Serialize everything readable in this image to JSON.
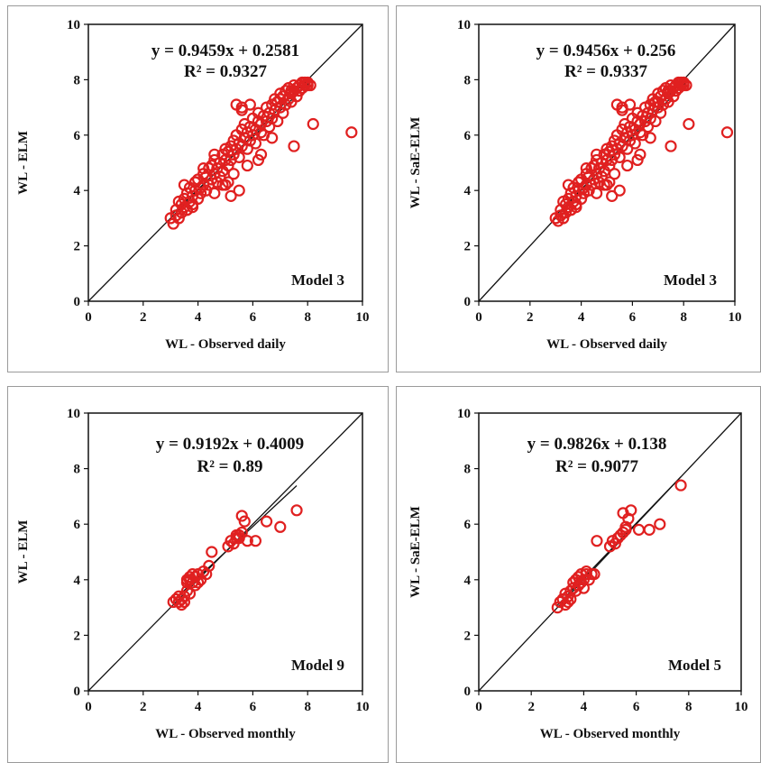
{
  "chart_data": [
    {
      "type": "scatter",
      "title": "",
      "xlabel": "WL - Observed daily",
      "ylabel": "WL - ELM",
      "xlim": [
        0,
        10
      ],
      "ylim": [
        0,
        10
      ],
      "xticks": [
        0,
        2,
        4,
        6,
        8,
        10
      ],
      "yticks": [
        0,
        2,
        4,
        6,
        8,
        10
      ],
      "equation": "y = 0.9459x + 0.2581",
      "r2": "R² = 0.9327",
      "model_label": "Model 3",
      "fit": {
        "slope": 0.9459,
        "intercept": 0.2581,
        "x_range": [
          3.0,
          8.1
        ]
      },
      "reference_line": "1:1",
      "marker_color": "#e02020",
      "x": [
        3.0,
        3.1,
        3.2,
        3.2,
        3.3,
        3.4,
        3.4,
        3.5,
        3.5,
        3.6,
        3.6,
        3.7,
        3.7,
        3.8,
        3.8,
        3.9,
        3.9,
        4.0,
        4.0,
        4.1,
        4.1,
        4.2,
        4.2,
        4.3,
        4.3,
        4.4,
        4.4,
        4.5,
        4.5,
        4.6,
        4.6,
        4.7,
        4.7,
        4.8,
        4.8,
        4.9,
        4.9,
        5.0,
        5.0,
        5.1,
        5.1,
        5.2,
        5.2,
        5.3,
        5.3,
        5.4,
        5.4,
        5.5,
        5.5,
        5.6,
        5.6,
        5.7,
        5.7,
        5.8,
        5.8,
        5.9,
        5.9,
        6.0,
        6.0,
        6.1,
        6.1,
        6.2,
        6.2,
        6.3,
        6.3,
        6.4,
        6.4,
        6.5,
        6.5,
        6.6,
        6.6,
        6.7,
        6.7,
        6.8,
        6.8,
        6.9,
        6.9,
        7.0,
        7.0,
        7.1,
        7.1,
        7.2,
        7.2,
        7.3,
        7.3,
        7.4,
        7.4,
        7.5,
        7.5,
        7.6,
        7.6,
        7.7,
        7.7,
        7.8,
        7.8,
        7.9,
        7.9,
        8.0,
        8.0,
        8.1,
        3.3,
        3.6,
        3.9,
        4.2,
        4.6,
        5.0,
        5.3,
        5.6,
        5.9,
        6.3,
        6.7,
        7.0,
        7.4,
        7.8,
        5.4,
        5.6,
        5.2,
        5.5,
        5.1,
        7.5,
        8.2,
        9.6,
        5.8,
        6.2,
        4.6,
        4.9,
        3.5,
        3.8
      ],
      "y": [
        3.0,
        2.8,
        3.1,
        3.3,
        3.0,
        3.5,
        3.2,
        3.7,
        3.4,
        3.3,
        3.9,
        3.6,
        4.1,
        3.8,
        3.5,
        4.0,
        4.3,
        3.7,
        4.4,
        4.1,
        3.9,
        4.6,
        4.2,
        4.0,
        4.5,
        4.8,
        4.2,
        4.4,
        4.9,
        4.6,
        5.1,
        4.3,
        4.8,
        5.0,
        4.5,
        5.3,
        4.7,
        5.1,
        5.5,
        4.9,
        5.4,
        5.6,
        5.1,
        5.8,
        5.3,
        5.5,
        6.0,
        5.7,
        5.2,
        6.2,
        5.6,
        5.9,
        6.4,
        5.5,
        6.1,
        6.3,
        5.8,
        6.0,
        6.6,
        6.2,
        5.7,
        6.5,
        6.8,
        6.1,
        6.4,
        6.7,
        6.0,
        7.0,
        6.5,
        6.8,
        6.3,
        7.1,
        6.6,
        6.9,
        7.3,
        6.5,
        7.2,
        7.0,
        7.5,
        6.8,
        7.4,
        7.6,
        7.1,
        7.3,
        7.7,
        7.5,
        7.2,
        7.6,
        7.8,
        7.4,
        7.7,
        7.8,
        7.6,
        7.9,
        7.7,
        7.8,
        7.9,
        7.9,
        7.8,
        7.8,
        3.6,
        3.3,
        4.3,
        4.8,
        5.3,
        4.2,
        4.6,
        6.9,
        7.1,
        5.3,
        5.9,
        7.3,
        7.6,
        7.7,
        7.1,
        7.0,
        3.8,
        4.0,
        4.3,
        5.6,
        6.4,
        6.1,
        4.9,
        5.1,
        3.9,
        4.2,
        4.2,
        3.4
      ]
    },
    {
      "type": "scatter",
      "title": "",
      "xlabel": "WL - Observed daily",
      "ylabel": "WL - SaE-ELM",
      "xlim": [
        0,
        10
      ],
      "ylim": [
        0,
        10
      ],
      "xticks": [
        0,
        2,
        4,
        6,
        8,
        10
      ],
      "yticks": [
        0,
        2,
        4,
        6,
        8,
        10
      ],
      "equation": "y = 0.9456x + 0.256",
      "r2": "R² = 0.9337",
      "model_label": "Model 3",
      "fit": {
        "slope": 0.9456,
        "intercept": 0.256,
        "x_range": [
          3.0,
          8.1
        ]
      },
      "reference_line": "1:1",
      "marker_color": "#e02020",
      "x": [
        3.0,
        3.1,
        3.2,
        3.2,
        3.3,
        3.4,
        3.4,
        3.5,
        3.5,
        3.6,
        3.6,
        3.7,
        3.7,
        3.8,
        3.8,
        3.9,
        3.9,
        4.0,
        4.0,
        4.1,
        4.1,
        4.2,
        4.2,
        4.3,
        4.3,
        4.4,
        4.4,
        4.5,
        4.5,
        4.6,
        4.6,
        4.7,
        4.7,
        4.8,
        4.8,
        4.9,
        4.9,
        5.0,
        5.0,
        5.1,
        5.1,
        5.2,
        5.2,
        5.3,
        5.3,
        5.4,
        5.4,
        5.5,
        5.5,
        5.6,
        5.6,
        5.7,
        5.7,
        5.8,
        5.8,
        5.9,
        5.9,
        6.0,
        6.0,
        6.1,
        6.1,
        6.2,
        6.2,
        6.3,
        6.3,
        6.4,
        6.4,
        6.5,
        6.5,
        6.6,
        6.6,
        6.7,
        6.7,
        6.8,
        6.8,
        6.9,
        6.9,
        7.0,
        7.0,
        7.1,
        7.1,
        7.2,
        7.2,
        7.3,
        7.3,
        7.4,
        7.4,
        7.5,
        7.5,
        7.6,
        7.6,
        7.7,
        7.7,
        7.8,
        7.8,
        7.9,
        7.9,
        8.0,
        8.0,
        8.1,
        3.3,
        3.6,
        3.9,
        4.2,
        4.6,
        5.0,
        5.3,
        5.6,
        5.9,
        6.3,
        6.7,
        7.0,
        7.4,
        7.8,
        5.4,
        5.6,
        5.2,
        5.5,
        5.1,
        7.5,
        8.2,
        9.7,
        5.8,
        6.2,
        4.6,
        4.9,
        3.5,
        3.8
      ],
      "y": [
        3.0,
        2.9,
        3.1,
        3.3,
        3.0,
        3.5,
        3.2,
        3.7,
        3.4,
        3.3,
        3.9,
        3.6,
        4.1,
        3.8,
        3.5,
        4.0,
        4.3,
        3.7,
        4.4,
        4.1,
        3.9,
        4.6,
        4.2,
        4.0,
        4.5,
        4.8,
        4.2,
        4.4,
        4.9,
        4.6,
        5.1,
        4.3,
        4.8,
        5.0,
        4.5,
        5.3,
        4.7,
        5.1,
        5.5,
        4.9,
        5.4,
        5.6,
        5.1,
        5.8,
        5.3,
        5.5,
        6.0,
        5.7,
        5.2,
        6.2,
        5.6,
        5.9,
        6.4,
        5.5,
        6.1,
        6.3,
        5.8,
        6.0,
        6.6,
        6.2,
        5.7,
        6.5,
        6.8,
        6.1,
        6.4,
        6.7,
        6.0,
        7.0,
        6.5,
        6.8,
        6.3,
        7.1,
        6.6,
        6.9,
        7.3,
        6.5,
        7.2,
        7.0,
        7.5,
        6.8,
        7.4,
        7.6,
        7.1,
        7.3,
        7.7,
        7.5,
        7.2,
        7.6,
        7.8,
        7.4,
        7.7,
        7.8,
        7.6,
        7.9,
        7.7,
        7.8,
        7.9,
        7.9,
        7.8,
        7.8,
        3.6,
        3.3,
        4.3,
        4.8,
        5.3,
        4.2,
        4.6,
        6.9,
        7.1,
        5.3,
        5.9,
        7.2,
        7.6,
        7.7,
        7.1,
        7.0,
        3.8,
        4.0,
        4.3,
        5.6,
        6.4,
        6.1,
        4.9,
        5.1,
        3.9,
        4.2,
        4.2,
        3.4
      ]
    },
    {
      "type": "scatter",
      "title": "",
      "xlabel": "WL - Observed monthly",
      "ylabel": "WL - ELM",
      "xlim": [
        0,
        10
      ],
      "ylim": [
        0,
        10
      ],
      "xticks": [
        0,
        2,
        4,
        6,
        8,
        10
      ],
      "yticks": [
        0,
        2,
        4,
        6,
        8,
        10
      ],
      "equation": "y = 0.9192x + 0.4009",
      "r2": "R² = 0.89",
      "model_label": "Model 9",
      "fit": {
        "slope": 0.9192,
        "intercept": 0.4009,
        "x_range": [
          3.1,
          7.6
        ]
      },
      "reference_line": "1:1",
      "marker_color": "#e02020",
      "x": [
        3.1,
        3.2,
        3.3,
        3.3,
        3.4,
        3.4,
        3.5,
        3.5,
        3.6,
        3.6,
        3.7,
        3.7,
        3.8,
        3.8,
        3.9,
        3.9,
        4.0,
        4.0,
        4.1,
        4.2,
        4.3,
        4.4,
        4.5,
        5.1,
        5.2,
        5.3,
        5.4,
        5.5,
        5.6,
        5.7,
        5.8,
        6.1,
        6.5,
        7.0,
        7.6,
        5.5,
        5.6,
        5.4,
        3.6,
        3.7
      ],
      "y": [
        3.2,
        3.3,
        3.2,
        3.4,
        3.3,
        3.1,
        3.4,
        3.2,
        3.6,
        4.0,
        4.1,
        3.5,
        3.9,
        4.2,
        3.8,
        4.1,
        4.2,
        3.9,
        4.0,
        4.3,
        4.2,
        4.5,
        5.0,
        5.2,
        5.4,
        5.3,
        5.5,
        5.6,
        5.7,
        6.1,
        5.4,
        5.4,
        6.1,
        5.9,
        6.5,
        5.5,
        6.3,
        5.6,
        3.9,
        4.0
      ]
    },
    {
      "type": "scatter",
      "title": "",
      "xlabel": "WL - Observed monthly",
      "ylabel": "WL - SaE-ELM",
      "xlim": [
        0,
        10
      ],
      "ylim": [
        0,
        10
      ],
      "xticks": [
        0,
        2,
        4,
        6,
        8,
        10
      ],
      "yticks": [
        0,
        2,
        4,
        6,
        8,
        10
      ],
      "equation": "y = 0.9826x + 0.138",
      "r2": "R² = 0.9077",
      "model_label": "Model 5",
      "fit": {
        "slope": 0.9826,
        "intercept": 0.138,
        "x_range": [
          3.0,
          7.7
        ]
      },
      "reference_line": "1:1",
      "marker_color": "#e02020",
      "x": [
        3.0,
        3.1,
        3.2,
        3.3,
        3.3,
        3.4,
        3.4,
        3.5,
        3.5,
        3.6,
        3.6,
        3.7,
        3.7,
        3.8,
        3.8,
        3.9,
        3.9,
        4.0,
        4.0,
        4.1,
        4.1,
        4.2,
        4.3,
        4.4,
        4.5,
        5.0,
        5.1,
        5.2,
        5.3,
        5.4,
        5.5,
        5.6,
        5.7,
        5.8,
        6.1,
        6.5,
        6.9,
        7.7,
        5.5,
        5.6
      ],
      "y": [
        3.0,
        3.2,
        3.3,
        3.1,
        3.5,
        3.4,
        3.2,
        3.6,
        3.3,
        3.7,
        3.9,
        3.6,
        4.0,
        3.8,
        4.1,
        3.9,
        4.2,
        3.7,
        4.0,
        4.2,
        4.3,
        4.0,
        4.2,
        4.2,
        5.4,
        5.2,
        5.4,
        5.3,
        5.5,
        5.6,
        5.7,
        5.8,
        6.2,
        6.5,
        5.8,
        5.8,
        6.0,
        7.4,
        6.4,
        5.9
      ]
    }
  ]
}
